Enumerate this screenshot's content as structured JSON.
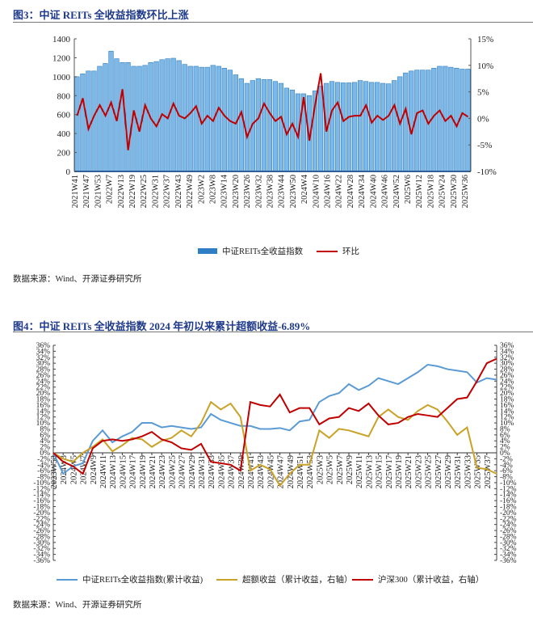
{
  "chart_data": [
    {
      "type": "bar",
      "title": "图3：中证 REITs 全收益指数环比上涨",
      "source": "数据来源：Wind、开源证券研究所",
      "ylim_left": [
        0,
        1400
      ],
      "yticks_left": [
        "0",
        "200",
        "400",
        "600",
        "800",
        "1000",
        "1200",
        "1400"
      ],
      "ylim_right": [
        -10,
        15
      ],
      "yticks_right": [
        "-10%",
        "-5%",
        "0%",
        "5%",
        "10%",
        "15%"
      ],
      "tick_labels": [
        "2021W41",
        "2021W47",
        "2021W53",
        "2022W7",
        "2022W13",
        "2022W19",
        "2022W25",
        "2022W31",
        "2022W37",
        "2022W43",
        "2022W49",
        "2023W2",
        "2023W8",
        "2023W14",
        "2023W20",
        "2023W26",
        "2023W32",
        "2023W38",
        "2023W44",
        "2023W50",
        "2024W4",
        "2024W10",
        "2024W16",
        "2024W22",
        "2024W28",
        "2024W34",
        "2024W40",
        "2024W46",
        "2024W52",
        "2025W6",
        "2025W12",
        "2025W18",
        "2025W24",
        "2025W30",
        "2025W36"
      ],
      "series": [
        {
          "name": "中证REITs全收益指数",
          "axis": "left",
          "kind": "bar",
          "color": "#2f7fc4",
          "values": [
            1000,
            1030,
            1060,
            1060,
            1110,
            1140,
            1270,
            1190,
            1150,
            1150,
            1110,
            1110,
            1120,
            1150,
            1160,
            1180,
            1190,
            1195,
            1170,
            1130,
            1110,
            1110,
            1100,
            1100,
            1120,
            1110,
            1090,
            1070,
            1020,
            980,
            930,
            960,
            980,
            970,
            970,
            950,
            930,
            880,
            860,
            820,
            820,
            800,
            850,
            900,
            930,
            950,
            940,
            935,
            935,
            940,
            960,
            950,
            940,
            940,
            930,
            925,
            960,
            1000,
            1040,
            1060,
            1070,
            1070,
            1070,
            1090,
            1110,
            1110,
            1100,
            1090,
            1080,
            1080
          ]
        },
        {
          "name": "环比",
          "axis": "right",
          "kind": "line",
          "color": "#c00000",
          "values": [
            0.5,
            3.8,
            -2,
            0.5,
            2.5,
            0.5,
            3.0,
            -0.5,
            5.5,
            -6.0,
            1.5,
            -2.5,
            2.5,
            0,
            -1.5,
            0.8,
            0,
            2.8,
            0.5,
            0,
            1.0,
            2.3,
            -1.0,
            0.5,
            -0.5,
            2.0,
            0.5,
            -0.5,
            -1.0,
            1.2,
            -3.5,
            -1.0,
            0,
            2.8,
            1.0,
            -0.5,
            0.3,
            -3.0,
            -1.0,
            -3.5,
            4.0,
            -4.2,
            2.5,
            8.5,
            -2.5,
            1.5,
            3.0,
            -0.5,
            0.3,
            0.5,
            0.5,
            2.5,
            -0.8,
            0.5,
            -0.3,
            0.5,
            2.5,
            -1.0,
            1.8,
            -3.0,
            1.0,
            1.5,
            -1.0,
            0.5,
            1.5,
            -0.5,
            0.5,
            -1.5,
            1.0,
            0.3
          ]
        }
      ],
      "legend_position": "bottom"
    },
    {
      "type": "line",
      "title": "图4：中证 REITs 全收益指数 2024 年初以来累计超额收益-6.89%",
      "source": "数据来源：Wind、开源证券研究所",
      "ylim": [
        -36,
        36
      ],
      "yticks": [
        "36%",
        "34%",
        "32%",
        "30%",
        "28%",
        "26%",
        "24%",
        "22%",
        "20%",
        "18%",
        "16%",
        "14%",
        "12%",
        "10%",
        "8%",
        "6%",
        "4%",
        "2%",
        "0%",
        "-2%",
        "-4%",
        "-6%",
        "-8%",
        "-10%",
        "-12%",
        "-14%",
        "-16%",
        "-18%",
        "-20%",
        "-22%",
        "-24%",
        "-26%",
        "-28%",
        "-30%",
        "-32%",
        "-34%",
        "-36%"
      ],
      "tick_labels": [
        "2023W53",
        "2024W3",
        "2024W5",
        "2024W7",
        "2024W9",
        "2024W11",
        "2024W13",
        "2024W15",
        "2024W17",
        "2024W19",
        "2024W21",
        "2024W23",
        "2024W25",
        "2024W27",
        "2024W29",
        "2024W31",
        "2024W33",
        "2024W35",
        "2024W37",
        "2024W39",
        "2024W41",
        "2024W43",
        "2024W45",
        "2024W47",
        "2024W49",
        "2024W51",
        "2024W53",
        "2025W3",
        "2025W5",
        "2025W7",
        "2025W9",
        "2025W11",
        "2025W13",
        "2025W15",
        "2025W17",
        "2025W19",
        "2025W21",
        "2025W23",
        "2025W25",
        "2025W27",
        "2025W29",
        "2025W31",
        "2025W33",
        "2025W35",
        "2025W37"
      ],
      "series": [
        {
          "name": "中证REITs全收益指数(累计收益)",
          "axis": "left",
          "color": "#5b9bd5",
          "values": [
            0,
            -7,
            -4.5,
            -3.5,
            4,
            7.5,
            3.5,
            5.5,
            7,
            10,
            10,
            8.5,
            9,
            8.5,
            8,
            8.5,
            13,
            11,
            10,
            9,
            9,
            8,
            8,
            8.3,
            7.5,
            10.5,
            11,
            17,
            19,
            20,
            23,
            21,
            22.5,
            25,
            24,
            23,
            25,
            27,
            29.5,
            29,
            28,
            27.5,
            27,
            23.5,
            25,
            24.5
          ]
        },
        {
          "name": "超额收益（累计收益，右轴）",
          "axis": "right",
          "color": "#c9a227",
          "values": [
            0,
            -2,
            -3,
            0,
            2,
            4.5,
            0.5,
            2.5,
            5,
            4.5,
            2,
            4,
            5,
            7.5,
            5.5,
            10,
            17,
            14.5,
            16.5,
            12,
            -6,
            -4,
            -5.5,
            -11,
            -7,
            -4,
            -4,
            7.5,
            5,
            8,
            7.5,
            6.5,
            5.5,
            12,
            14.5,
            12,
            11,
            14,
            16,
            14.5,
            10.5,
            6,
            8.5,
            -5,
            -5.5,
            -7
          ]
        },
        {
          "name": "沪深300（累计收益，右轴）",
          "axis": "right",
          "color": "#c00000",
          "values": [
            0,
            -3,
            -4.5,
            -7,
            1.5,
            4,
            4.5,
            4,
            4.5,
            5.5,
            7,
            4.5,
            3.5,
            1.5,
            1,
            3,
            -3,
            -3.5,
            -4,
            -6,
            17,
            16,
            15.5,
            19.5,
            13.5,
            15,
            15,
            9.5,
            11.5,
            12,
            15,
            14,
            16.5,
            12.5,
            9.5,
            10,
            12,
            13,
            12.5,
            12,
            15,
            18,
            18.5,
            24,
            30,
            31.5
          ]
        }
      ],
      "legend_position": "bottom"
    }
  ]
}
